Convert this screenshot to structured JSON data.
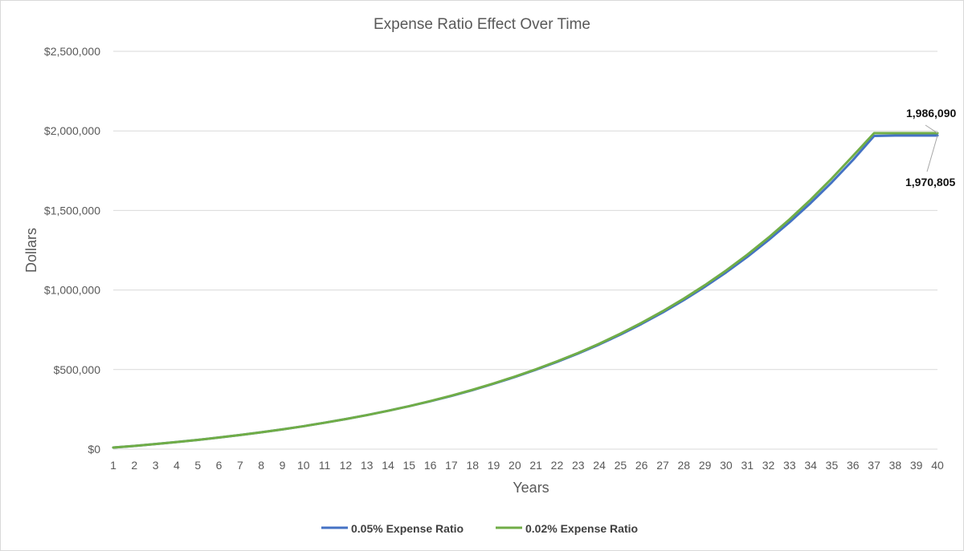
{
  "chart_data": {
    "type": "line",
    "title": "Expense Ratio Effect Over Time",
    "xlabel": "Years",
    "ylabel": "Dollars",
    "x": [
      1,
      2,
      3,
      4,
      5,
      6,
      7,
      8,
      9,
      10,
      11,
      12,
      13,
      14,
      15,
      16,
      17,
      18,
      19,
      20,
      21,
      22,
      23,
      24,
      25,
      26,
      27,
      28,
      29,
      30,
      31,
      32,
      33,
      34,
      35,
      36,
      37,
      38,
      39,
      40
    ],
    "y_ticks": [
      0,
      500000,
      1000000,
      1500000,
      2000000,
      2500000
    ],
    "y_tick_labels": [
      "$0",
      "$500,000",
      "$1,000,000",
      "$1,500,000",
      "$2,000,000",
      "$2,500,000"
    ],
    "ylim": [
      0,
      2500000
    ],
    "grid": true,
    "legend_position": "bottom",
    "colors": {
      "gridline": "#d9d9d9",
      "axis_text": "#595959"
    },
    "series": [
      {
        "name": "0.05% Expense Ratio",
        "color": "#4472c4",
        "values": [
          10000,
          20000,
          32000,
          45000,
          58000,
          73000,
          89000,
          106000,
          124000,
          144000,
          166000,
          189000,
          214000,
          241000,
          270000,
          301000,
          334000,
          371000,
          411000,
          453000,
          499000,
          548000,
          601000,
          658000,
          720000,
          787000,
          859000,
          937000,
          1021000,
          1111000,
          1208000,
          1313000,
          1426000,
          1547000,
          1677000,
          1817000,
          1968000,
          1970805,
          1970805,
          1970805
        ]
      },
      {
        "name": "0.02% Expense Ratio",
        "color": "#70ad47",
        "values": [
          10000,
          20000,
          32000,
          45000,
          58000,
          73000,
          89000,
          106000,
          124000,
          144000,
          166000,
          189000,
          214000,
          241000,
          270000,
          302000,
          336000,
          373000,
          413000,
          456000,
          502000,
          552000,
          605000,
          663000,
          726000,
          794000,
          867000,
          946000,
          1031000,
          1123000,
          1222000,
          1329000,
          1444000,
          1568000,
          1701000,
          1843000,
          1986090,
          1986090,
          1986090,
          1986090
        ]
      }
    ],
    "annotations": [
      {
        "text": "1,986,090",
        "series": 1,
        "x": 40
      },
      {
        "text": "1,970,805",
        "series": 0,
        "x": 40
      }
    ]
  }
}
